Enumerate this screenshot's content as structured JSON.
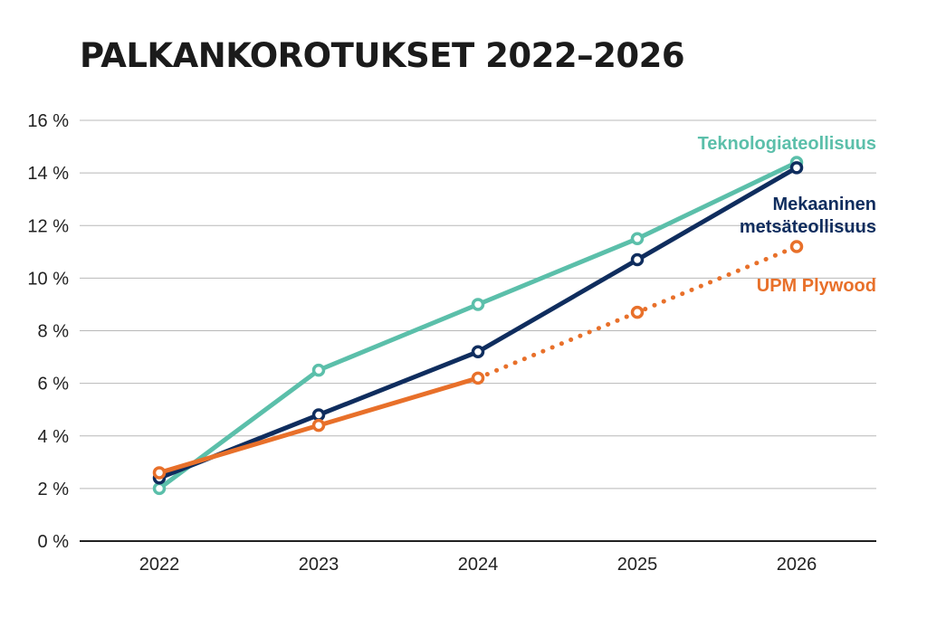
{
  "chart_data": {
    "type": "line",
    "title": "PALKANKOROTUKSET 2022–2026",
    "xlabel": "",
    "ylabel": "",
    "categories": [
      "2022",
      "2023",
      "2024",
      "2025",
      "2026"
    ],
    "ylim": [
      0,
      16
    ],
    "y_ticks": [
      {
        "value": 0,
        "label": "0 %"
      },
      {
        "value": 2,
        "label": "2 %"
      },
      {
        "value": 4,
        "label": "4 %"
      },
      {
        "value": 6,
        "label": "6 %"
      },
      {
        "value": 8,
        "label": "8 %"
      },
      {
        "value": 10,
        "label": "10 %"
      },
      {
        "value": 12,
        "label": "12 %"
      },
      {
        "value": 14,
        "label": "14 %"
      },
      {
        "value": 16,
        "label": "16 %"
      }
    ],
    "grid": true,
    "legend": "inline-right",
    "series": [
      {
        "name": "Teknologiateollisuus",
        "color": "#5bbfaa",
        "values": [
          2.0,
          6.5,
          9.0,
          11.5,
          14.4
        ],
        "dashed_from_index": null,
        "label_lines": [
          "Teknologiateollisuus"
        ]
      },
      {
        "name": "Mekaaninen metsäteollisuus",
        "color": "#0f2d5e",
        "values": [
          2.4,
          4.8,
          7.2,
          10.7,
          14.2
        ],
        "dashed_from_index": null,
        "label_lines": [
          "Mekaaninen",
          "metsäteollisuus"
        ]
      },
      {
        "name": "UPM Plywood",
        "color": "#e8702a",
        "values": [
          2.6,
          4.4,
          6.2,
          8.7,
          11.2
        ],
        "dashed_from_index": 2,
        "label_lines": [
          "UPM Plywood"
        ]
      }
    ]
  }
}
